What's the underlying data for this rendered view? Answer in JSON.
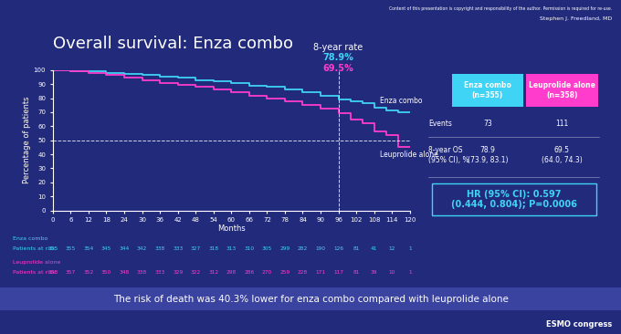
{
  "chart_data": {
    "type": "line",
    "title": "Overall survival: Enza combo",
    "copyright": "Content of this presentation is copyright and responsibility of the author. Permission is required for re-use.",
    "author": "Stephen J. Freedland, MD",
    "x_label": "Months",
    "y_label": "Percentage of patients",
    "xlim": [
      0,
      120
    ],
    "ylim": [
      0,
      100
    ],
    "xticks": [
      0,
      6,
      12,
      18,
      24,
      30,
      36,
      42,
      48,
      54,
      60,
      66,
      72,
      78,
      84,
      90,
      96,
      102,
      108,
      114,
      120
    ],
    "yticks": [
      0,
      10,
      20,
      30,
      40,
      50,
      60,
      70,
      80,
      90,
      100
    ],
    "grid": false,
    "line_style": "step",
    "reference_lines": {
      "x": 96,
      "y": 50
    },
    "rate_annotation": {
      "title": "8-year rate",
      "labels": [
        "78.9%",
        "69.5%"
      ]
    },
    "at_risk_title": "Patients at risk",
    "series": [
      {
        "name": "Enza combo",
        "color": "#3fd3f5",
        "x": [
          0,
          6,
          12,
          18,
          24,
          30,
          36,
          42,
          48,
          54,
          60,
          66,
          72,
          78,
          84,
          90,
          96,
          100,
          104,
          108,
          112,
          116,
          120
        ],
        "values": [
          100,
          99.5,
          99,
          98,
          97.5,
          96.5,
          95.5,
          94.5,
          93,
          92,
          90.5,
          89,
          88,
          86.5,
          84,
          81.5,
          78.9,
          78,
          76.5,
          73.5,
          71,
          70,
          70
        ],
        "at_risk": [
          355,
          355,
          354,
          345,
          344,
          342,
          338,
          333,
          327,
          318,
          313,
          310,
          305,
          299,
          282,
          190,
          126,
          81,
          41,
          12,
          1
        ]
      },
      {
        "name": "Leuprolide alone",
        "color": "#ff3ccb",
        "x": [
          0,
          6,
          12,
          18,
          24,
          30,
          36,
          42,
          48,
          54,
          60,
          66,
          72,
          78,
          84,
          90,
          96,
          100,
          104,
          108,
          112,
          116,
          120
        ],
        "values": [
          100,
          99,
          98,
          96.5,
          95,
          93,
          91,
          89.5,
          88,
          86,
          84,
          82,
          80,
          78,
          75.5,
          72.5,
          69.5,
          65,
          62,
          56,
          54,
          45,
          45
        ],
        "at_risk": [
          358,
          357,
          352,
          350,
          348,
          338,
          333,
          329,
          322,
          312,
          298,
          286,
          270,
          259,
          228,
          171,
          117,
          81,
          39,
          10,
          1
        ]
      }
    ],
    "table": {
      "headers": [
        [
          "Enza combo",
          "(n=355)"
        ],
        [
          "Leuprolide alone",
          "(n=358)"
        ]
      ],
      "rows": [
        {
          "label": [
            "Events"
          ],
          "cells": [
            [
              "73"
            ],
            [
              "111"
            ]
          ]
        },
        {
          "label": [
            "8-year OS",
            "(95% CI), %"
          ],
          "cells": [
            [
              "78.9",
              "(73.9, 83.1)"
            ],
            [
              "69.5",
              "(64.0, 74.3)"
            ]
          ]
        }
      ]
    },
    "hazard_ratio": [
      "HR (95% CI): 0.597",
      "(0.444, 0.804); P=0.0006"
    ],
    "caption": "The risk of death was 40.3% lower for enza combo compared with leuprolide alone",
    "logo": "ESMO congress"
  }
}
